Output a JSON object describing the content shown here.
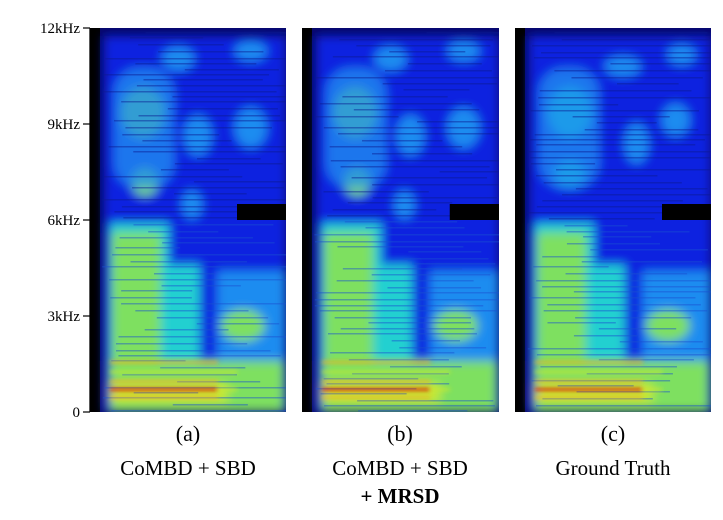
{
  "chart_data": {
    "type": "heatmap",
    "description_free": true,
    "y_axis": {
      "ticks": [
        {
          "value": 0,
          "label": "0"
        },
        {
          "value": 3,
          "label": "3kHz"
        },
        {
          "value": 6,
          "label": "6kHz"
        },
        {
          "value": 9,
          "label": "9kHz"
        },
        {
          "value": 12,
          "label": "12kHz"
        }
      ],
      "ylim": [
        0,
        12
      ]
    },
    "panels": [
      {
        "id": "(a)",
        "caption": [
          "CoMBD + SBD"
        ],
        "caption_bold": ""
      },
      {
        "id": "(b)",
        "caption": [
          "CoMBD + SBD"
        ],
        "caption_bold": "+ MRSD"
      },
      {
        "id": "(c)",
        "caption": [
          "Ground Truth"
        ],
        "caption_bold": ""
      }
    ],
    "colormap": [
      "#000000",
      "#0a0a7a",
      "#1020e0",
      "#1e8cf0",
      "#20d0d0",
      "#7ee060",
      "#c8e830",
      "#f0b020",
      "#e02010"
    ]
  }
}
